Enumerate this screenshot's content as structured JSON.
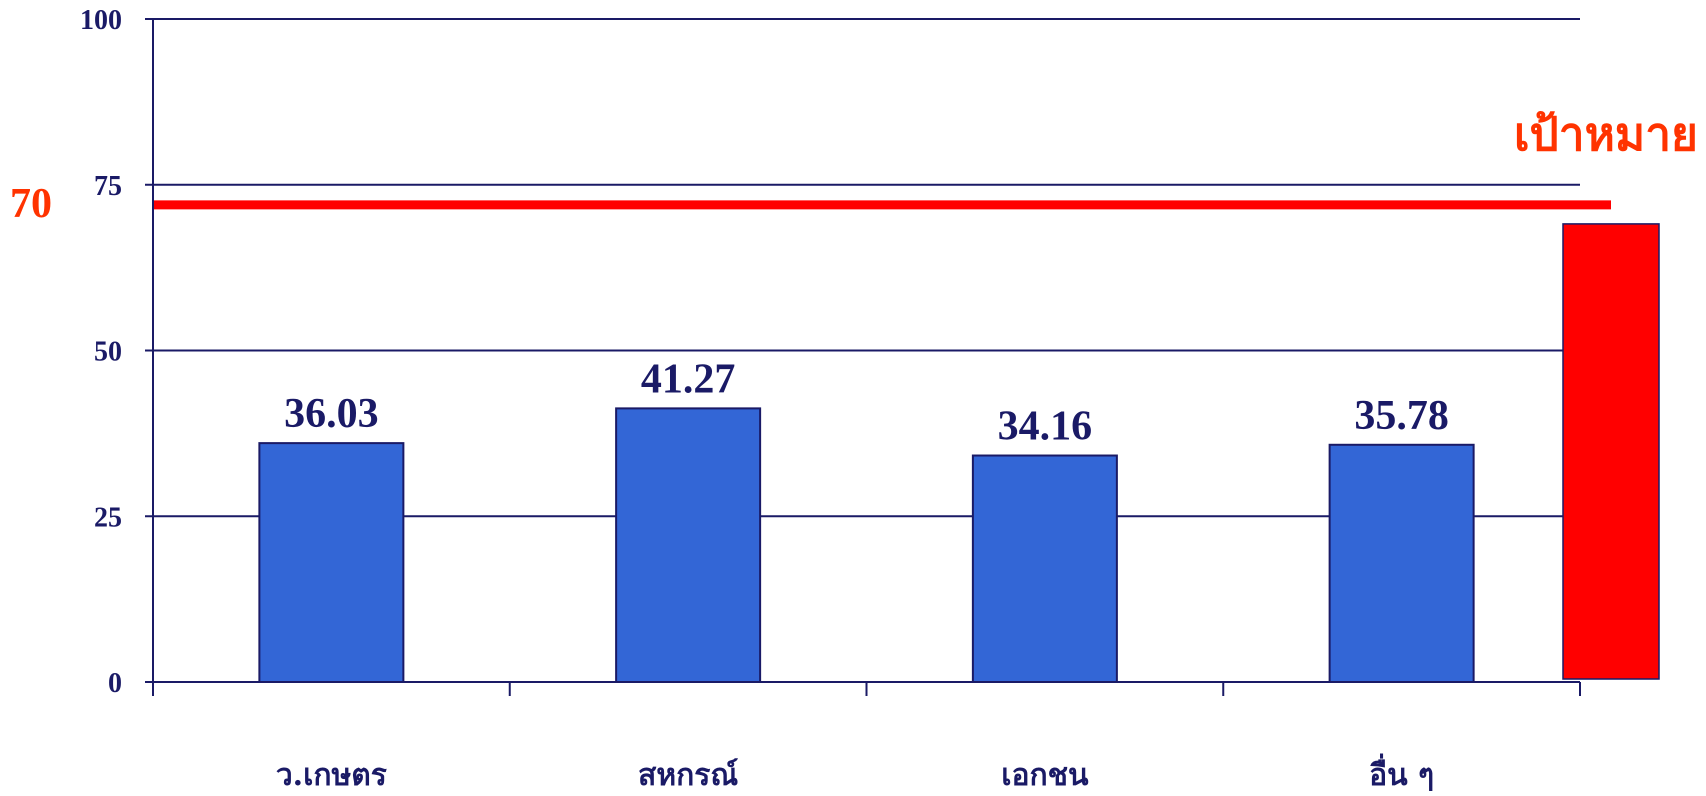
{
  "chart_data": {
    "type": "bar",
    "categories": [
      "ว.เกษตร",
      "สหกรณ์",
      "เอกชน",
      "อื่น ๆ"
    ],
    "values": [
      36.03,
      41.27,
      34.16,
      35.78
    ],
    "value_labels": [
      "36.03",
      "41.27",
      "34.16",
      "35.78"
    ],
    "ylim": [
      0,
      100
    ],
    "yticks": [
      0,
      25,
      50,
      75,
      100
    ],
    "grid": true,
    "bar_color": "#3366d6",
    "bar_edge_color": "#1a1a66",
    "axis_color": "#1a1a66",
    "target": {
      "value": 70,
      "value_label": "70",
      "label": "เป้าหมาย",
      "color": "#ff0000",
      "label_color": "#ff3300"
    }
  }
}
